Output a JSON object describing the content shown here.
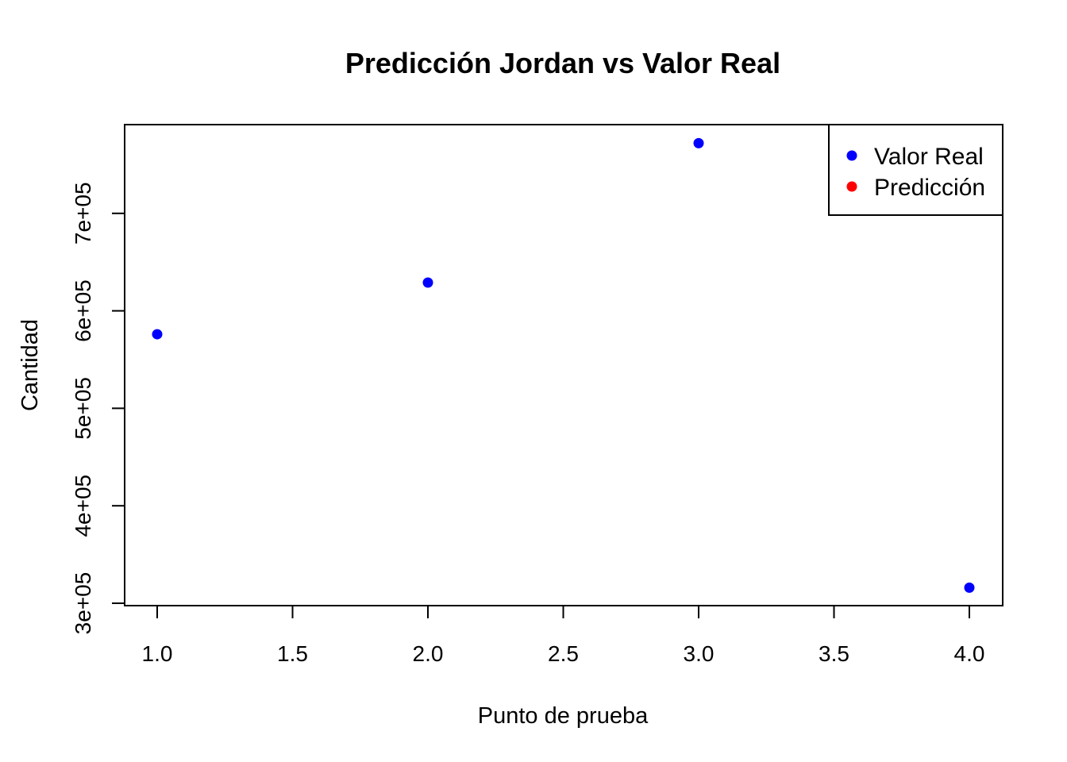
{
  "chart_data": {
    "type": "scatter",
    "title": "Predicción Jordan vs Valor Real",
    "xlabel": "Punto de prueba",
    "ylabel": "Cantidad",
    "xlim": [
      1.0,
      4.0
    ],
    "ylim": [
      300000,
      790000
    ],
    "x_ticks": [
      "1.0",
      "1.5",
      "2.0",
      "2.5",
      "3.0",
      "3.5",
      "4.0"
    ],
    "y_ticks": [
      "3e+05",
      "4e+05",
      "5e+05",
      "6e+05",
      "7e+05"
    ],
    "grid": false,
    "legend_position": "top-right",
    "series": [
      {
        "name": "Valor Real",
        "color": "#0000ff",
        "points": [
          {
            "x": 1,
            "y": 576000
          },
          {
            "x": 2,
            "y": 629000
          },
          {
            "x": 3,
            "y": 772000
          },
          {
            "x": 4,
            "y": 316000
          }
        ]
      },
      {
        "name": "Predicción",
        "color": "#ff0000",
        "points": []
      }
    ]
  }
}
